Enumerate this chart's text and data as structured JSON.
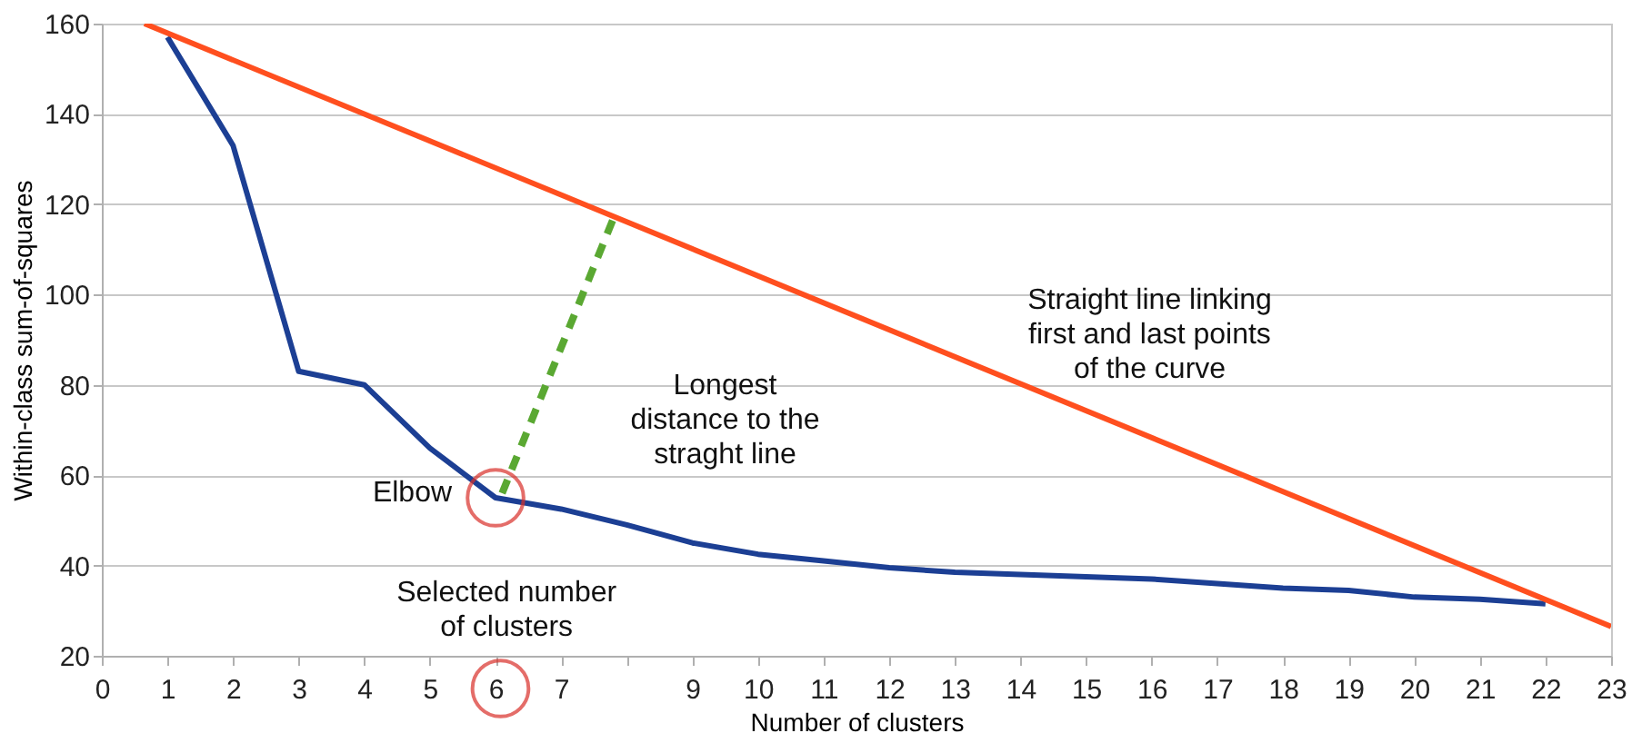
{
  "chart_data": {
    "type": "line",
    "xlabel": "Number of clusters",
    "ylabel": "Within-class sum-of-squares",
    "xlim": [
      0,
      23
    ],
    "xticks": [
      0,
      1,
      2,
      3,
      4,
      5,
      6,
      7,
      {
        "value": 8,
        "label": null
      },
      9,
      10,
      11,
      12,
      13,
      14,
      15,
      16,
      17,
      18,
      19,
      20,
      21,
      22,
      23
    ],
    "ylim": [
      20,
      160
    ],
    "yticks": [
      20,
      40,
      60,
      80,
      100,
      120,
      140,
      160
    ],
    "grid": "y",
    "series": [
      {
        "color": "#1c3f94",
        "x": [
          1,
          2,
          3,
          4,
          5,
          6,
          7,
          8,
          9,
          10,
          11,
          12,
          13,
          14,
          15,
          16,
          17,
          18,
          19,
          20,
          21,
          22
        ],
        "values": [
          157,
          133,
          83,
          80,
          66,
          55,
          52.5,
          49,
          45,
          42.5,
          41,
          39.5,
          38.5,
          38,
          37.5,
          37,
          36,
          35,
          34.5,
          33,
          32.5,
          31.5
        ]
      },
      {
        "color": "#ff4f1f",
        "x": [
          0.65,
          23
        ],
        "values": [
          160,
          26.5
        ]
      },
      {
        "color": "#5aa832",
        "line_style": "dashed",
        "x": [
          6.1,
          7.8
        ],
        "values": [
          56,
          117
        ]
      }
    ],
    "annotations": [
      {
        "text": "Elbow",
        "x": 6,
        "y": 55
      },
      "Selected number\nof clusters",
      "Longest\ndistance to the\nstraght line",
      "Straight line linking\nfirst and last points\nof the curve"
    ]
  }
}
